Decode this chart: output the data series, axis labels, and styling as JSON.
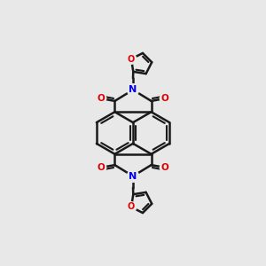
{
  "background_color": "#e8e8e8",
  "bond_color": "#1a1a1a",
  "N_color": "#0000ee",
  "O_color": "#dd0000",
  "bond_width": 1.8,
  "figsize": [
    3.0,
    3.0
  ],
  "dpi": 100,
  "xlim": [
    -4.5,
    4.5
  ],
  "ylim": [
    -6.2,
    6.2
  ]
}
